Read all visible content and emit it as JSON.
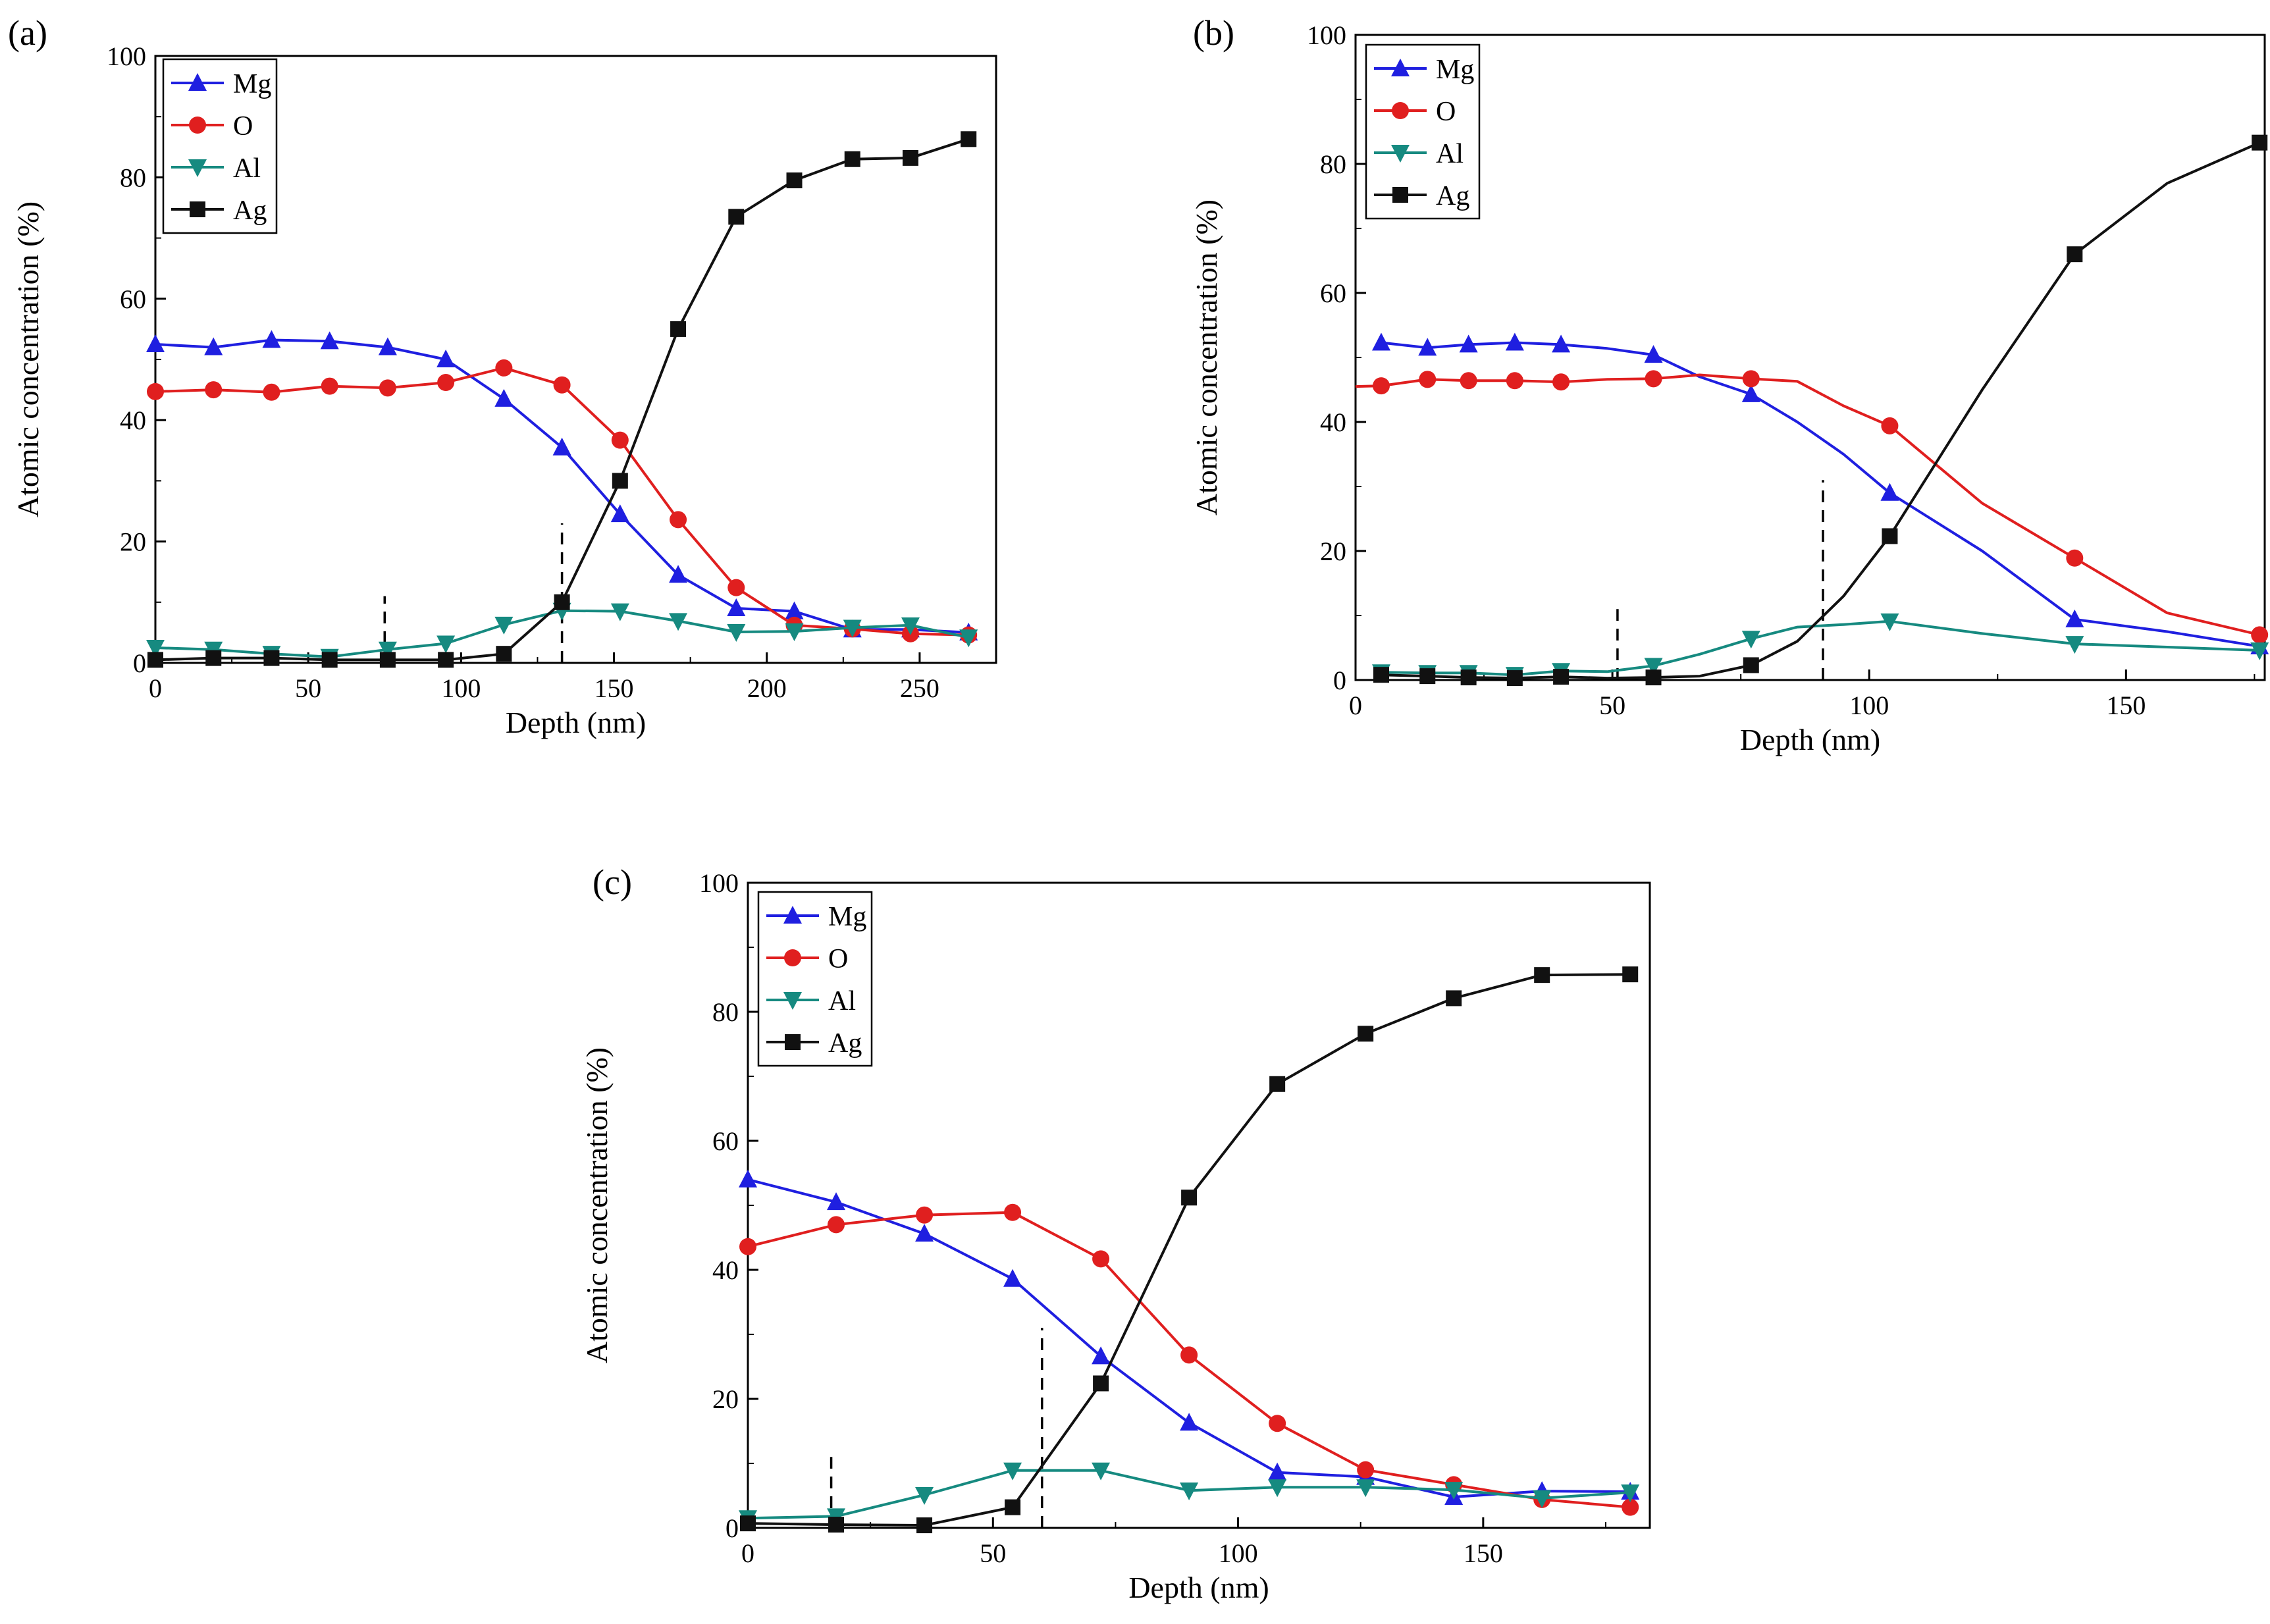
{
  "figure": {
    "colors": {
      "Mg": "#1f1fe0",
      "O": "#e01f1f",
      "Al": "#168a80",
      "Ag": "#111111"
    }
  },
  "chart_data": [
    {
      "panel": "(a)",
      "type": "line",
      "xlabel": "Depth (nm)",
      "ylabel": "Atomic concentration (%)",
      "xlim": [
        0,
        275
      ],
      "ylim": [
        0,
        100
      ],
      "xticks": [
        0,
        50,
        100,
        150,
        200,
        250
      ],
      "yticks": [
        0,
        20,
        40,
        60,
        80,
        100
      ],
      "legend_position": "top-left",
      "dashed_markers": [
        {
          "x": 75,
          "ymax": 11
        },
        {
          "x": 133,
          "ymax": 23
        }
      ],
      "series": [
        {
          "name": "Mg",
          "marker": "triangle-up",
          "x": [
            0,
            19,
            38,
            57,
            76,
            95,
            114,
            133,
            152,
            171,
            190,
            209,
            228,
            247,
            266
          ],
          "y": [
            52.5,
            52,
            53.2,
            53,
            52,
            50,
            43.5,
            35.5,
            24.5,
            14.5,
            9,
            8.5,
            5.5,
            5.5,
            5
          ]
        },
        {
          "name": "O",
          "marker": "circle",
          "x": [
            0,
            19,
            38,
            57,
            76,
            95,
            114,
            133,
            152,
            171,
            190,
            209,
            228,
            247,
            266
          ],
          "y": [
            44.7,
            45,
            44.6,
            45.6,
            45.3,
            46.2,
            48.6,
            45.8,
            36.7,
            23.6,
            12.4,
            6.2,
            5.6,
            4.8,
            4.6
          ]
        },
        {
          "name": "Al",
          "marker": "triangle-down",
          "x": [
            0,
            19,
            38,
            57,
            76,
            95,
            114,
            133,
            152,
            171,
            190,
            209,
            228,
            247,
            266
          ],
          "y": [
            2.5,
            2.2,
            1.5,
            1,
            2.2,
            3.2,
            6.3,
            8.6,
            8.5,
            6.9,
            5.1,
            5.2,
            5.8,
            6.2,
            4.2
          ]
        },
        {
          "name": "Ag",
          "marker": "square",
          "x": [
            0,
            19,
            38,
            57,
            76,
            95,
            114,
            133,
            152,
            171,
            190,
            209,
            228,
            247,
            266
          ],
          "y": [
            0.5,
            0.8,
            0.8,
            0.5,
            0.5,
            0.5,
            1.5,
            10,
            30,
            55,
            73.5,
            79.5,
            83,
            83.2,
            86.3
          ]
        }
      ]
    },
    {
      "panel": "(b)",
      "type": "line",
      "xlabel": "Depth (nm)",
      "ylabel": "Atomic concentration (%)",
      "xlim": [
        0,
        177
      ],
      "ylim": [
        0,
        100
      ],
      "xticks": [
        0,
        50,
        100,
        150
      ],
      "yticks": [
        0,
        20,
        40,
        60,
        80,
        100
      ],
      "legend_position": "top-left",
      "dashed_markers": [
        {
          "x": 51,
          "ymax": 11
        },
        {
          "x": 91,
          "ymax": 31
        }
      ],
      "series": [
        {
          "name": "Mg",
          "marker": "triangle-up",
          "x": [
            5,
            14,
            22,
            31,
            40,
            49,
            58,
            67,
            77,
            86,
            95,
            104,
            122,
            140,
            158,
            176
          ],
          "y": [
            52.3,
            51.5,
            52,
            52.3,
            52,
            51.4,
            50.4,
            47,
            44.3,
            40,
            35,
            29,
            20,
            9.4,
            7.5,
            5.2
          ],
          "markers": [
            true,
            true,
            true,
            true,
            true,
            false,
            true,
            false,
            true,
            false,
            false,
            true,
            false,
            true,
            false,
            true
          ]
        },
        {
          "name": "O",
          "marker": "circle",
          "x": [
            0,
            5,
            14,
            22,
            31,
            40,
            49,
            58,
            67,
            77,
            86,
            95,
            104,
            122,
            140,
            158,
            176
          ],
          "y": [
            45.5,
            45.6,
            46.6,
            46.4,
            46.4,
            46.2,
            46.6,
            46.7,
            47.3,
            46.7,
            46.3,
            42.5,
            39.4,
            27.4,
            18.9,
            10.4,
            7
          ],
          "markers": [
            false,
            true,
            true,
            true,
            true,
            true,
            false,
            true,
            false,
            true,
            false,
            false,
            true,
            false,
            true,
            false,
            true
          ]
        },
        {
          "name": "Al",
          "marker": "triangle-down",
          "x": [
            5,
            14,
            22,
            31,
            40,
            49,
            58,
            67,
            77,
            86,
            95,
            104,
            122,
            140,
            158,
            176
          ],
          "y": [
            1.2,
            1.1,
            1.1,
            0.8,
            1.4,
            1.3,
            2.2,
            4,
            6.4,
            8.2,
            8.6,
            9.1,
            7.2,
            5.6,
            5.1,
            4.6
          ],
          "markers": [
            true,
            true,
            true,
            true,
            true,
            false,
            true,
            false,
            true,
            false,
            false,
            true,
            false,
            true,
            false,
            true
          ]
        },
        {
          "name": "Ag",
          "marker": "square",
          "x": [
            5,
            14,
            22,
            31,
            40,
            49,
            58,
            67,
            77,
            86,
            95,
            104,
            122,
            140,
            158,
            176
          ],
          "y": [
            0.8,
            0.6,
            0.4,
            0.3,
            0.5,
            0.3,
            0.4,
            0.6,
            2.3,
            6,
            13,
            22.3,
            45,
            66,
            77,
            83.3
          ],
          "markers": [
            true,
            true,
            true,
            true,
            true,
            false,
            true,
            false,
            true,
            false,
            false,
            true,
            false,
            true,
            false,
            true
          ]
        }
      ]
    },
    {
      "panel": "(c)",
      "type": "line",
      "xlabel": "Depth (nm)",
      "ylabel": "Atomic concentration (%)",
      "xlim": [
        0,
        184
      ],
      "ylim": [
        0,
        100
      ],
      "xticks": [
        0,
        50,
        100,
        150
      ],
      "yticks": [
        0,
        20,
        40,
        60,
        80,
        100
      ],
      "legend_position": "top-left",
      "dashed_markers": [
        {
          "x": 17,
          "ymax": 11
        },
        {
          "x": 60,
          "ymax": 31
        }
      ],
      "series": [
        {
          "name": "Mg",
          "marker": "triangle-up",
          "x": [
            0,
            18,
            36,
            54,
            72,
            90,
            108,
            126,
            144,
            162,
            180
          ],
          "y": [
            54,
            50.5,
            45.6,
            38.6,
            26.6,
            16.3,
            8.6,
            7.9,
            4.8,
            5.7,
            5.6
          ]
        },
        {
          "name": "O",
          "marker": "circle",
          "x": [
            0,
            18,
            36,
            54,
            72,
            90,
            108,
            126,
            144,
            162,
            180
          ],
          "y": [
            43.6,
            47,
            48.5,
            48.9,
            41.7,
            26.8,
            16.2,
            9,
            6.7,
            4.4,
            3.2
          ]
        },
        {
          "name": "Al",
          "marker": "triangle-down",
          "x": [
            0,
            18,
            36,
            54,
            72,
            90,
            108,
            126,
            144,
            162,
            180
          ],
          "y": [
            1.5,
            1.8,
            5.1,
            8.9,
            8.9,
            5.8,
            6.3,
            6.3,
            5.9,
            4.6,
            5.5
          ]
        },
        {
          "name": "Ag",
          "marker": "square",
          "x": [
            0,
            18,
            36,
            54,
            72,
            90,
            108,
            126,
            144,
            162,
            180
          ],
          "y": [
            0.7,
            0.5,
            0.4,
            3.2,
            22.4,
            51.2,
            68.8,
            76.6,
            82.1,
            85.7,
            85.8
          ]
        }
      ]
    }
  ]
}
